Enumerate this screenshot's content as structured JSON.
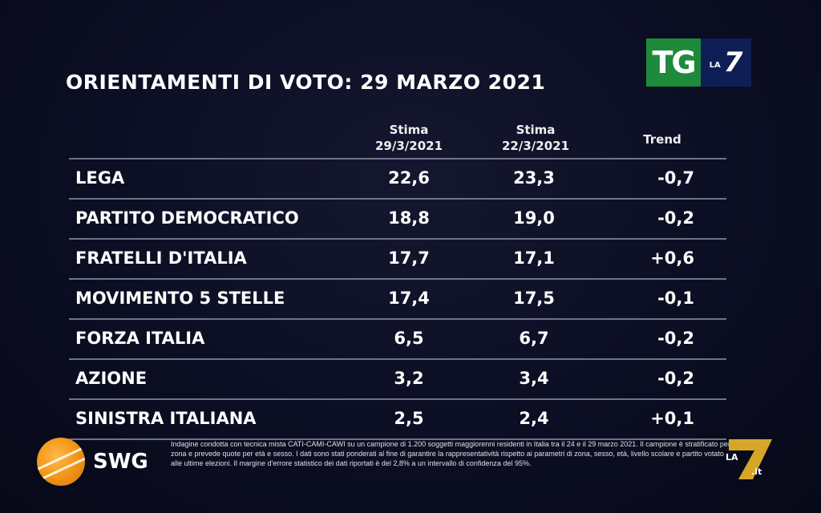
{
  "title": "ORIENTAMENTI DI VOTO: 29 MARZO 2021",
  "tg_logo": {
    "tg": "TG",
    "la": "LA",
    "seven": "7"
  },
  "headers": {
    "col1_line1": "Stima",
    "col1_line2": "29/3/2021",
    "col2_line1": "Stima",
    "col2_line2": "22/3/2021",
    "col3": "Trend"
  },
  "chart_data": {
    "type": "table",
    "columns": [
      "",
      "Stima 29/3/2021",
      "Stima 22/3/2021",
      "Trend"
    ],
    "rows": [
      {
        "name": "LEGA",
        "v1": "22,6",
        "v2": "23,3",
        "trend": "-0,7"
      },
      {
        "name": "PARTITO DEMOCRATICO",
        "v1": "18,8",
        "v2": "19,0",
        "trend": "-0,2"
      },
      {
        "name": "FRATELLI D'ITALIA",
        "v1": "17,7",
        "v2": "17,1",
        "trend": "+0,6"
      },
      {
        "name": "MOVIMENTO 5 STELLE",
        "v1": "17,4",
        "v2": "17,5",
        "trend": "-0,1"
      },
      {
        "name": "FORZA ITALIA",
        "v1": "6,5",
        "v2": "6,7",
        "trend": "-0,2"
      },
      {
        "name": "AZIONE",
        "v1": "3,2",
        "v2": "3,4",
        "trend": "-0,2"
      },
      {
        "name": "SINISTRA ITALIANA",
        "v1": "2,5",
        "v2": "2,4",
        "trend": "+0,1"
      }
    ]
  },
  "swg": {
    "label": "SWG"
  },
  "footnote": "Indagine condotta con tecnica mista CATI-CAMI-CAWI su un campione di 1.200 soggetti maggiorenni residenti in Italia tra il 24 e il 29 marzo 2021. Il campione è stratificato per zona e prevede quote per età e sesso. I dati sono stati ponderati al fine di garantire la rappresentatività rispetto ai parametri di zona, sesso, età, livello scolare e partito votato alle ultime elezioni. Il margine d'errore statistico dei dati riportati è del 2,8% a un intervallo di confidenza del 95%.",
  "la7_logo": {
    "la": "LA",
    "seven": "7",
    "it": ".it"
  },
  "colors": {
    "background": "#0b0d22",
    "tg_green": "#1e8a3c",
    "tg_blue": "#0f1f56",
    "swg_orange": "#f39a1a",
    "la7_gold": "#d6a629"
  }
}
